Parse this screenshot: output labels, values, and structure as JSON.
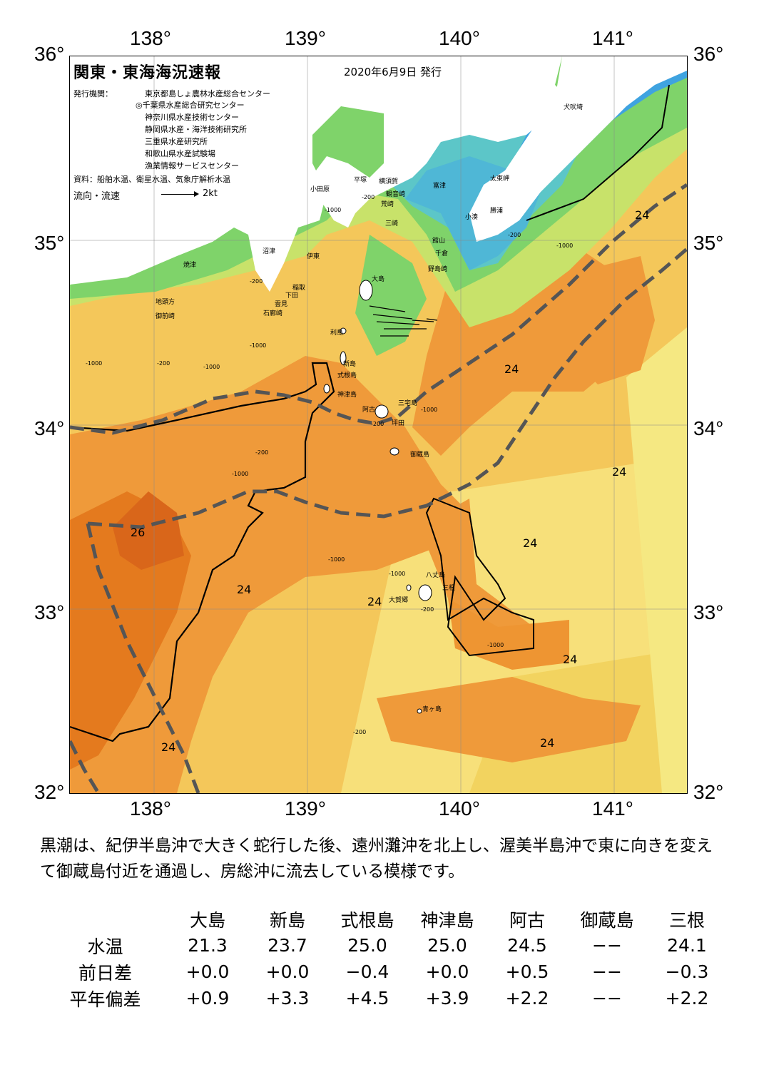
{
  "title": "関東・東海海況速報",
  "issue_date": "2020年6月9日 発行",
  "issuers_label": "発行機関：",
  "issuers": [
    "東京都島しょ農林水産総合センター",
    "◎千葉県水産総合研究センター",
    "神奈川県水産技術センター",
    "静岡県水産・海洋技術研究所",
    "三重県水産研究所",
    "和歌山県水産試験場",
    "漁業情報サービスセンター"
  ],
  "sources": "資料：船舶水温、衛星水温、気象庁解析水温",
  "flow_legend": {
    "label": "流向・流速",
    "unit": "2kt"
  },
  "axes": {
    "lon_top": [
      "138°",
      "139°",
      "140°",
      "141°"
    ],
    "lon_bottom": [
      "138°",
      "139°",
      "140°",
      "141°"
    ],
    "lat_left": [
      "36°",
      "35°",
      "34°",
      "33°",
      "32°"
    ],
    "lat_right": [
      "36°",
      "35°",
      "34°",
      "33°",
      "32°"
    ]
  },
  "place_names": {
    "inubosaki": "犬吠埼",
    "taitomisaki": "太東岬",
    "katsuura": "勝浦",
    "kominato": "小湊",
    "futtsu": "富津",
    "yokosuka": "横須賀",
    "kannonzaki": "観音崎",
    "arasaki": "荒崎",
    "misaki": "三崎",
    "hiratsuka": "平塚",
    "odawara": "小田原",
    "tateyama": "館山",
    "chikura": "千倉",
    "nojimazaki": "野島崎",
    "numazu": "沼津",
    "ito": "伊東",
    "yaizu": "焼津",
    "inatori": "稲取",
    "shimoda": "下田",
    "mikomoto": "雲見",
    "irozaki": "石廊崎",
    "omaezaki": "御前崎",
    "jitogata": "地頭方",
    "oshima": "大島",
    "toshima": "利島",
    "niijima": "新島",
    "shikinejima": "式根島",
    "kozushima": "神津島",
    "ako": "阿古",
    "miyakejima": "三宅島",
    "tsubota": "坪田",
    "mikurajima": "御蔵島",
    "hachijojima": "八丈島",
    "mitsune": "三根",
    "okago": "大賀郷",
    "aogashima": "青ヶ島"
  },
  "isotherm_labels": [
    "24",
    "24",
    "24",
    "24",
    "24",
    "26",
    "24",
    "24",
    "24",
    "24",
    "24"
  ],
  "depth_labels": [
    "-200",
    "-1000",
    "-200",
    "-1000",
    "-200",
    "-1000",
    "-1000",
    "-200",
    "-1000",
    "-1000",
    "-1000",
    "-200",
    "-200",
    "-1000",
    "-1000",
    "-1000",
    "-200",
    "-200"
  ],
  "summary": "黒潮は、紀伊半島沖で大きく蛇行した後、遠州灘沖を北上し、渥美半島沖で東に向きを変えて御蔵島付近を通過し、房総沖に流去している模様です。",
  "table": {
    "columns": [
      "大島",
      "新島",
      "式根島",
      "神津島",
      "阿古",
      "御蔵島",
      "三根"
    ],
    "rows": [
      {
        "label": "水温",
        "values": [
          "21.3",
          "23.7",
          "25.0",
          "25.0",
          "24.5",
          "−−",
          "24.1"
        ]
      },
      {
        "label": "前日差",
        "values": [
          "+0.0",
          "+0.0",
          "−0.4",
          "+0.0",
          "+0.5",
          "−−",
          "−0.3"
        ]
      },
      {
        "label": "平年偏差",
        "values": [
          "+0.9",
          "+3.3",
          "+4.5",
          "+3.9",
          "+2.2",
          "−−",
          "+2.2"
        ]
      }
    ]
  },
  "colors": {
    "cold": "#3fa3e0",
    "cool": "#5cc6c8",
    "green": "#7fd36a",
    "yellowgreen": "#c8e26a",
    "yellow": "#f7e07a",
    "lightorange": "#f4c75a",
    "orange": "#ef9a3a",
    "deeporange": "#e47a1e",
    "kuroshio_axis": "#555555"
  }
}
